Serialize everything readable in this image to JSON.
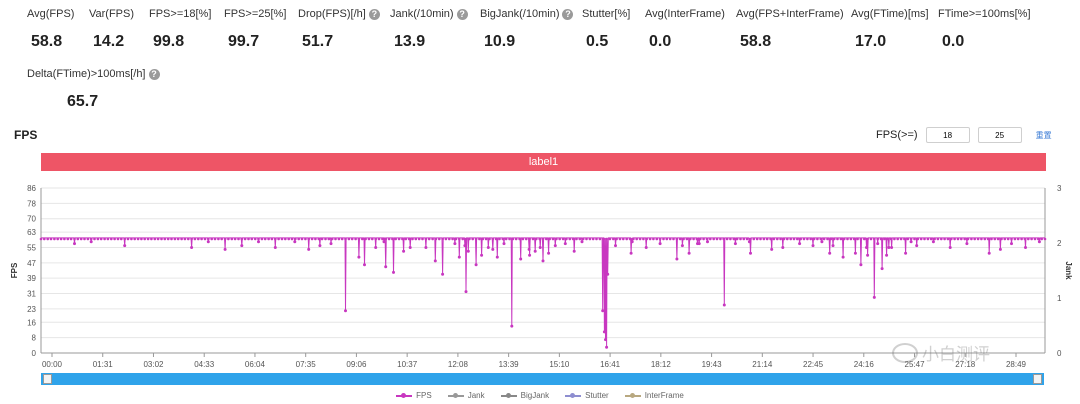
{
  "metrics": [
    {
      "label": "Avg(FPS)",
      "value": "58.8",
      "help": false
    },
    {
      "label": "Var(FPS)",
      "value": "14.2",
      "help": false
    },
    {
      "label": "FPS>=18[%]",
      "value": "99.8",
      "help": false
    },
    {
      "label": "FPS>=25[%]",
      "value": "99.7",
      "help": false
    },
    {
      "label": "Drop(FPS)[/h]",
      "value": "51.7",
      "help": true
    },
    {
      "label": "Jank(/10min)",
      "value": "13.9",
      "help": true
    },
    {
      "label": "BigJank(/10min)",
      "value": "10.9",
      "help": true
    },
    {
      "label": "Stutter[%]",
      "value": "0.5",
      "help": false
    },
    {
      "label": "Avg(InterFrame)",
      "value": "0.0",
      "help": false
    },
    {
      "label": "Avg(FPS+InterFrame)",
      "value": "58.8",
      "help": false
    },
    {
      "label": "Avg(FTime)[ms]",
      "value": "17.0",
      "help": false
    },
    {
      "label": "FTime>=100ms[%]",
      "value": "0.0",
      "help": false
    },
    {
      "label": "Delta(FTime)>100ms[/h]",
      "value": "65.7",
      "help": true
    }
  ],
  "section_title": "FPS",
  "filter": {
    "label": "FPS(>=)",
    "value1": "18",
    "value2": "25",
    "reset_label": "重置"
  },
  "label_bar": "label1",
  "watermark": "小白测评",
  "colors": {
    "fps": "#c837c0",
    "jank": "#999999",
    "bigjank": "#888888",
    "stutter": "#8e8ed0",
    "interframe": "#b8a880",
    "label_bar": "#ee5566",
    "slider": "#2fa3ea"
  },
  "chart_data": {
    "type": "line",
    "title": "",
    "xlabel": "",
    "ylabel": "FPS",
    "y2label": "Jank",
    "x_tick_labels": [
      "00:00",
      "01:31",
      "03:02",
      "04:33",
      "06:04",
      "07:35",
      "09:06",
      "10:37",
      "12:08",
      "13:39",
      "15:10",
      "16:41",
      "18:12",
      "19:43",
      "21:14",
      "22:45",
      "24:16",
      "25:47",
      "27:18",
      "28:49"
    ],
    "y_ticks": [
      0,
      8,
      16,
      23,
      31,
      39,
      47,
      55,
      63,
      70,
      78,
      86
    ],
    "y_range": [
      0,
      86
    ],
    "y2_ticks": [
      0,
      1,
      2,
      3
    ],
    "y2_range": [
      0,
      3
    ],
    "x_range_seconds": [
      0,
      1800
    ],
    "grid": true,
    "legend_position": "bottom",
    "baseline_fps": 60,
    "series": [
      {
        "name": "FPS",
        "points": [
          [
            60,
            57
          ],
          [
            90,
            58
          ],
          [
            150,
            56
          ],
          [
            270,
            55
          ],
          [
            300,
            58
          ],
          [
            330,
            54
          ],
          [
            360,
            56
          ],
          [
            390,
            58
          ],
          [
            420,
            55
          ],
          [
            455,
            58
          ],
          [
            480,
            54
          ],
          [
            500,
            56
          ],
          [
            520,
            57
          ],
          [
            570,
            52
          ],
          [
            600,
            55
          ],
          [
            615,
            58
          ],
          [
            650,
            53
          ],
          [
            690,
            55
          ],
          [
            720,
            52
          ],
          [
            760,
            56
          ],
          [
            790,
            51
          ],
          [
            810,
            54
          ],
          [
            830,
            57
          ],
          [
            860,
            49
          ],
          [
            875,
            54
          ],
          [
            895,
            55
          ],
          [
            900,
            48
          ],
          [
            910,
            53
          ],
          [
            940,
            57
          ],
          [
            1010,
            57
          ],
          [
            1060,
            58
          ],
          [
            1150,
            56
          ],
          [
            1180,
            57
          ],
          [
            1270,
            58
          ],
          [
            1310,
            57
          ],
          [
            1330,
            55
          ],
          [
            1400,
            58
          ],
          [
            1420,
            56
          ],
          [
            1460,
            52
          ],
          [
            1480,
            55
          ],
          [
            1500,
            57
          ],
          [
            1520,
            55
          ],
          [
            1550,
            52
          ],
          [
            1570,
            56
          ],
          [
            1600,
            58
          ],
          [
            1630,
            55
          ],
          [
            1660,
            57
          ],
          [
            1700,
            52
          ],
          [
            1720,
            54
          ],
          [
            1740,
            57
          ],
          [
            1765,
            55
          ],
          [
            1790,
            58
          ]
        ]
      },
      {
        "name": "Jank",
        "points": []
      },
      {
        "name": "BigJank",
        "points": []
      },
      {
        "name": "Stutter",
        "points": []
      },
      {
        "name": "InterFrame",
        "points": []
      }
    ],
    "dips": [
      [
        546,
        22
      ],
      [
        570,
        50
      ],
      [
        580,
        46
      ],
      [
        618,
        45
      ],
      [
        632,
        42
      ],
      [
        662,
        55
      ],
      [
        707,
        48
      ],
      [
        720,
        41
      ],
      [
        742,
        57
      ],
      [
        750,
        50
      ],
      [
        762,
        32
      ],
      [
        766,
        53
      ],
      [
        780,
        46
      ],
      [
        802,
        55
      ],
      [
        818,
        50
      ],
      [
        844,
        14
      ],
      [
        876,
        51
      ],
      [
        886,
        53
      ],
      [
        910,
        52
      ],
      [
        922,
        56
      ],
      [
        956,
        53
      ],
      [
        970,
        58
      ],
      [
        1007,
        22
      ],
      [
        1010,
        11
      ],
      [
        1012,
        7
      ],
      [
        1014,
        3
      ],
      [
        1016,
        41
      ],
      [
        1030,
        56
      ],
      [
        1058,
        52
      ],
      [
        1085,
        55
      ],
      [
        1110,
        57
      ],
      [
        1140,
        49
      ],
      [
        1162,
        52
      ],
      [
        1177,
        57
      ],
      [
        1195,
        58
      ],
      [
        1225,
        25
      ],
      [
        1245,
        57
      ],
      [
        1272,
        52
      ],
      [
        1310,
        54
      ],
      [
        1360,
        57
      ],
      [
        1384,
        56
      ],
      [
        1414,
        52
      ],
      [
        1438,
        50
      ],
      [
        1470,
        46
      ],
      [
        1482,
        51
      ],
      [
        1494,
        29
      ],
      [
        1508,
        44
      ],
      [
        1516,
        51
      ],
      [
        1525,
        55
      ],
      [
        1560,
        58
      ]
    ]
  },
  "slider": {
    "start": 0,
    "end": 1
  },
  "legend": [
    {
      "name": "FPS",
      "color": "#c837c0"
    },
    {
      "name": "Jank",
      "color": "#999999"
    },
    {
      "name": "BigJank",
      "color": "#888888"
    },
    {
      "name": "Stutter",
      "color": "#8e8ed0"
    },
    {
      "name": "InterFrame",
      "color": "#b8a880"
    }
  ]
}
